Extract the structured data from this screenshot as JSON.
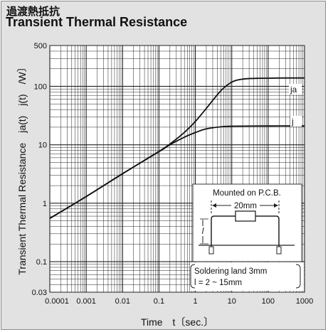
{
  "title_jp": "過渡熱抵抗",
  "title_en": "Transient Thermal Resistance",
  "chart_data": {
    "type": "line",
    "x_scale": "log",
    "y_scale": "log",
    "xlim": [
      0.0001,
      1000
    ],
    "ylim": [
      0.03,
      500
    ],
    "xlabel": "Time　t〔sec.〕",
    "ylabel": "Transient Thermal Resistance　ja(t)　j(t)　/W〕",
    "x_ticks": [
      {
        "v": 0.0001,
        "label": "0.0001"
      },
      {
        "v": 0.001,
        "label": "0.001"
      },
      {
        "v": 0.01,
        "label": "0.01"
      },
      {
        "v": 0.1,
        "label": "0.1"
      },
      {
        "v": 1,
        "label": "1"
      },
      {
        "v": 10,
        "label": "10"
      },
      {
        "v": 100,
        "label": "100"
      },
      {
        "v": 1000,
        "label": "1000"
      }
    ],
    "y_ticks": [
      {
        "v": 0.03,
        "label": "0.03"
      },
      {
        "v": 0.1,
        "label": "0.1"
      },
      {
        "v": 1,
        "label": "1"
      },
      {
        "v": 10,
        "label": "10"
      },
      {
        "v": 100,
        "label": "100"
      },
      {
        "v": 500,
        "label": "500"
      }
    ],
    "grid": true,
    "series": [
      {
        "name": "ja",
        "points": [
          [
            0.0001,
            0.55
          ],
          [
            0.001,
            1.3
          ],
          [
            0.01,
            3.2
          ],
          [
            0.1,
            7.7
          ],
          [
            0.2,
            10.3
          ],
          [
            0.5,
            16.3
          ],
          [
            1,
            25
          ],
          [
            2,
            42
          ],
          [
            5,
            84
          ],
          [
            10,
            118
          ],
          [
            20,
            133
          ],
          [
            50,
            137
          ],
          [
            100,
            138
          ],
          [
            300,
            139
          ],
          [
            1000,
            139
          ]
        ]
      },
      {
        "name": "j",
        "points": [
          [
            0.0001,
            0.55
          ],
          [
            0.001,
            1.3
          ],
          [
            0.01,
            3.2
          ],
          [
            0.1,
            7.6
          ],
          [
            0.2,
            10
          ],
          [
            0.5,
            13.5
          ],
          [
            1,
            16.2
          ],
          [
            2,
            18.7
          ],
          [
            5,
            20.3
          ],
          [
            10,
            20.8
          ],
          [
            100,
            21
          ],
          [
            1000,
            21
          ]
        ]
      }
    ],
    "annotations": {
      "mounted": "Mounted on P.C.B.",
      "dimension": "20mm",
      "dim_l": "l",
      "land": "Soldering land 3mm",
      "range": "l = 2 ~ 15mm"
    }
  }
}
